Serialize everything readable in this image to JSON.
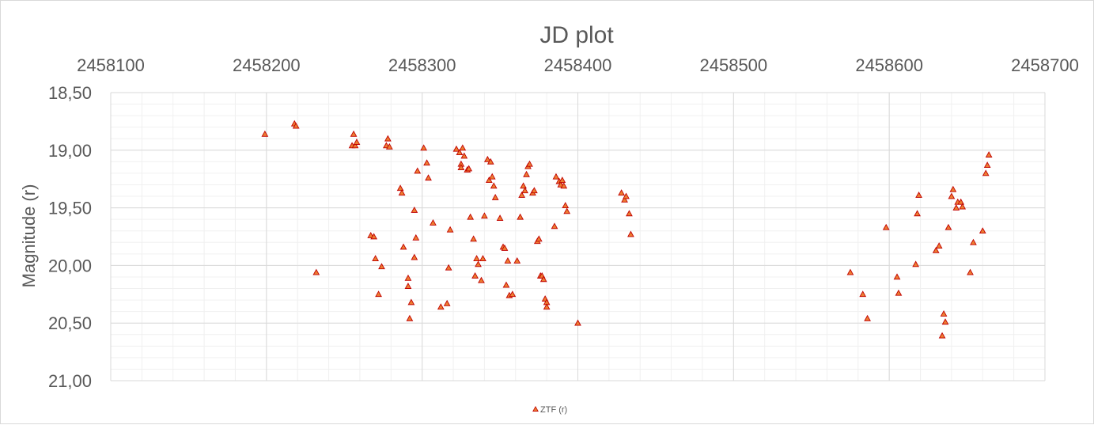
{
  "chart_data": {
    "type": "scatter",
    "title": "JD plot",
    "xlabel": "",
    "ylabel": "Magnitude (r)",
    "xlim": [
      2458100,
      2458700
    ],
    "ylim": [
      18.5,
      21.0
    ],
    "y_reversed": true,
    "x_axis_position": "top",
    "x_ticks": [
      "2458100",
      "2458200",
      "2458300",
      "2458400",
      "2458500",
      "2458600",
      "2458700"
    ],
    "y_ticks": [
      "18,50",
      "19,00",
      "19,50",
      "20,00",
      "20,50",
      "21,00"
    ],
    "grid": true,
    "legend_position": "bottom",
    "marker": "triangle",
    "marker_color": "#ED7D31",
    "marker_edge": "#C00000",
    "series": [
      {
        "name": "ZTF (r)",
        "points": [
          [
            2458199,
            18.86
          ],
          [
            2458218,
            18.77
          ],
          [
            2458219,
            18.79
          ],
          [
            2458232,
            20.06
          ],
          [
            2458255,
            18.96
          ],
          [
            2458256,
            18.86
          ],
          [
            2458257,
            18.96
          ],
          [
            2458258,
            18.93
          ],
          [
            2458267,
            19.74
          ],
          [
            2458269,
            19.75
          ],
          [
            2458270,
            19.94
          ],
          [
            2458272,
            20.25
          ],
          [
            2458274,
            20.01
          ],
          [
            2458277,
            18.96
          ],
          [
            2458278,
            18.9
          ],
          [
            2458279,
            18.97
          ],
          [
            2458286,
            19.33
          ],
          [
            2458287,
            19.37
          ],
          [
            2458288,
            19.84
          ],
          [
            2458291,
            20.11
          ],
          [
            2458291,
            20.18
          ],
          [
            2458292,
            20.46
          ],
          [
            2458293,
            20.32
          ],
          [
            2458295,
            19.93
          ],
          [
            2458295,
            19.52
          ],
          [
            2458296,
            19.76
          ],
          [
            2458297,
            19.18
          ],
          [
            2458301,
            18.98
          ],
          [
            2458303,
            19.11
          ],
          [
            2458304,
            19.24
          ],
          [
            2458307,
            19.63
          ],
          [
            2458312,
            20.36
          ],
          [
            2458316,
            20.33
          ],
          [
            2458317,
            20.02
          ],
          [
            2458318,
            19.69
          ],
          [
            2458322,
            18.99
          ],
          [
            2458324,
            19.02
          ],
          [
            2458325,
            19.12
          ],
          [
            2458325,
            19.15
          ],
          [
            2458326,
            18.98
          ],
          [
            2458327,
            19.05
          ],
          [
            2458329,
            19.17
          ],
          [
            2458330,
            19.16
          ],
          [
            2458331,
            19.58
          ],
          [
            2458333,
            19.77
          ],
          [
            2458334,
            20.09
          ],
          [
            2458335,
            19.94
          ],
          [
            2458336,
            19.99
          ],
          [
            2458338,
            20.13
          ],
          [
            2458339,
            19.94
          ],
          [
            2458340,
            19.57
          ],
          [
            2458342,
            19.08
          ],
          [
            2458343,
            19.26
          ],
          [
            2458344,
            19.1
          ],
          [
            2458345,
            19.23
          ],
          [
            2458346,
            19.31
          ],
          [
            2458347,
            19.41
          ],
          [
            2458350,
            19.59
          ],
          [
            2458352,
            19.84
          ],
          [
            2458353,
            19.85
          ],
          [
            2458354,
            20.17
          ],
          [
            2458355,
            19.96
          ],
          [
            2458356,
            20.26
          ],
          [
            2458358,
            20.25
          ],
          [
            2458361,
            19.96
          ],
          [
            2458363,
            19.58
          ],
          [
            2458364,
            19.39
          ],
          [
            2458365,
            19.31
          ],
          [
            2458366,
            19.35
          ],
          [
            2458367,
            19.21
          ],
          [
            2458368,
            19.14
          ],
          [
            2458369,
            19.12
          ],
          [
            2458371,
            19.37
          ],
          [
            2458372,
            19.35
          ],
          [
            2458374,
            19.79
          ],
          [
            2458375,
            19.77
          ],
          [
            2458376,
            20.09
          ],
          [
            2458377,
            20.09
          ],
          [
            2458378,
            20.12
          ],
          [
            2458379,
            20.29
          ],
          [
            2458380,
            20.32
          ],
          [
            2458380,
            20.36
          ],
          [
            2458385,
            19.66
          ],
          [
            2458386,
            19.23
          ],
          [
            2458388,
            19.27
          ],
          [
            2458389,
            19.3
          ],
          [
            2458390,
            19.26
          ],
          [
            2458391,
            19.31
          ],
          [
            2458392,
            19.48
          ],
          [
            2458393,
            19.53
          ],
          [
            2458400,
            20.5
          ],
          [
            2458428,
            19.37
          ],
          [
            2458430,
            19.43
          ],
          [
            2458431,
            19.4
          ],
          [
            2458433,
            19.55
          ],
          [
            2458434,
            19.73
          ],
          [
            2458575,
            20.06
          ],
          [
            2458583,
            20.25
          ],
          [
            2458586,
            20.46
          ],
          [
            2458598,
            19.67
          ],
          [
            2458605,
            20.1
          ],
          [
            2458606,
            20.24
          ],
          [
            2458617,
            19.99
          ],
          [
            2458618,
            19.55
          ],
          [
            2458619,
            19.39
          ],
          [
            2458630,
            19.87
          ],
          [
            2458632,
            19.83
          ],
          [
            2458634,
            20.61
          ],
          [
            2458635,
            20.42
          ],
          [
            2458636,
            20.49
          ],
          [
            2458638,
            19.67
          ],
          [
            2458640,
            19.4
          ],
          [
            2458641,
            19.34
          ],
          [
            2458643,
            19.5
          ],
          [
            2458644,
            19.45
          ],
          [
            2458646,
            19.45
          ],
          [
            2458647,
            19.49
          ],
          [
            2458652,
            20.06
          ],
          [
            2458654,
            19.8
          ],
          [
            2458660,
            19.7
          ],
          [
            2458662,
            19.2
          ],
          [
            2458663,
            19.13
          ],
          [
            2458664,
            19.04
          ]
        ]
      }
    ]
  }
}
